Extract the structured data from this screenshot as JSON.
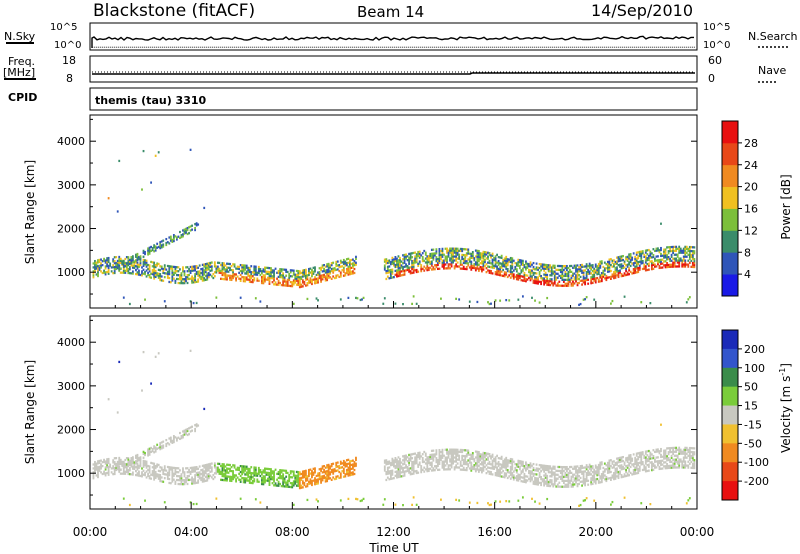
{
  "header": {
    "station": "Blackstone (fitACF)",
    "beam": "Beam 14",
    "date": "14/Sep/2010"
  },
  "params": {
    "nsky_label": "N.Sky",
    "nsky_ticks": [
      "10^5",
      "10^0"
    ],
    "nsearch_label": "N.Search",
    "freq_label_1": "Freq.",
    "freq_label_2": "[MHz]",
    "freq_ticks": [
      "18",
      "8"
    ],
    "nave_label": "Nave",
    "nave_ticks": [
      "60",
      "0"
    ],
    "cpid_label": "CPID",
    "cpid_value": "themis (tau) 3310"
  },
  "chart_data": [
    {
      "type": "heatmap",
      "name": "power",
      "ylabel": "Slant Range [km]",
      "xlabel": "Time UT",
      "x_ticks": [
        "00:00",
        "04:00",
        "08:00",
        "12:00",
        "16:00",
        "20:00",
        "00:00"
      ],
      "x_range_hours": [
        0,
        24
      ],
      "y_ticks": [
        1000,
        2000,
        3000,
        4000
      ],
      "ylim": [
        180,
        4600
      ],
      "colorbar": {
        "label": "Power [dB]",
        "ticks": [
          "4",
          "8",
          "12",
          "16",
          "20",
          "24",
          "28"
        ],
        "colors": [
          "#1a1ae6",
          "#2f55b8",
          "#3a8c6a",
          "#7cbf3a",
          "#f0c020",
          "#f08a20",
          "#e84818",
          "#e81010"
        ]
      }
    },
    {
      "type": "heatmap",
      "name": "velocity",
      "ylabel": "Slant Range [km]",
      "xlabel": "Time UT",
      "x_ticks": [
        "00:00",
        "04:00",
        "08:00",
        "12:00",
        "16:00",
        "20:00",
        "00:00"
      ],
      "x_range_hours": [
        0,
        24
      ],
      "y_ticks": [
        1000,
        2000,
        3000,
        4000
      ],
      "ylim": [
        180,
        4600
      ],
      "colorbar": {
        "label_main": "Velocity [",
        "label_unit": "m s",
        "label_exp": "-1",
        "label_close": "]",
        "ticks": [
          "200",
          "100",
          "50",
          "15",
          "-15",
          "-50",
          "-100",
          "-200"
        ],
        "colors": [
          "#1a2ab8",
          "#3355cc",
          "#3a8c4a",
          "#7acc3a",
          "#c8c8c0",
          "#f0c030",
          "#f08a20",
          "#e84818",
          "#e81010"
        ]
      }
    }
  ]
}
